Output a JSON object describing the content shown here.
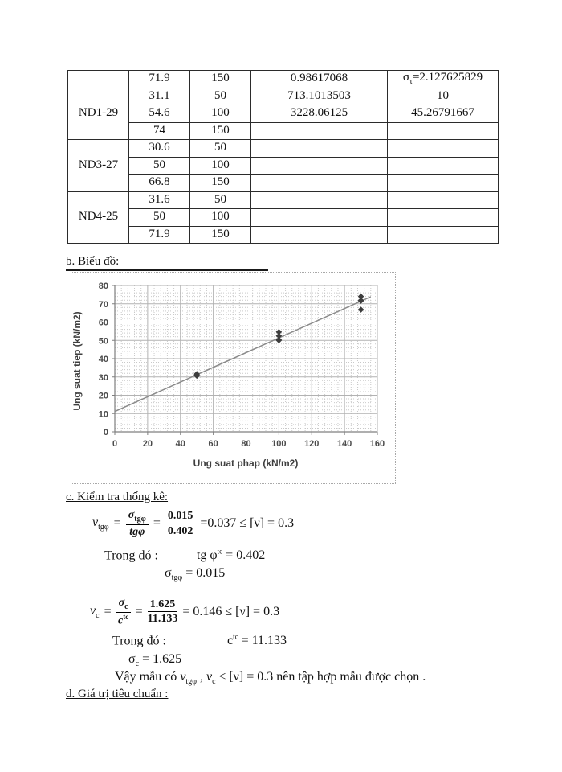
{
  "table": {
    "rows": [
      {
        "group": "",
        "shear": "71.9",
        "normal": "150",
        "col4": "0.98617068",
        "col5_sym": "σ",
        "col5_sub": "τ",
        "col5_val": "=2.127625829"
      },
      {
        "group": "ND1-29",
        "shear": "31.1",
        "normal": "50",
        "col4": "713.1013503",
        "col5": "10"
      },
      {
        "shear": "54.6",
        "normal": "100",
        "col4": "3228.06125",
        "col5": "45.26791667"
      },
      {
        "shear": "74",
        "normal": "150",
        "col4": "",
        "col5": ""
      },
      {
        "group": "ND3-27",
        "shear": "30.6",
        "normal": "50",
        "col4": "",
        "col5": ""
      },
      {
        "shear": "50",
        "normal": "100",
        "col4": "",
        "col5": ""
      },
      {
        "shear": "66.8",
        "normal": "150",
        "col4": "",
        "col5": ""
      },
      {
        "group": "ND4-25",
        "shear": "31.6",
        "normal": "50",
        "col4": "",
        "col5": ""
      },
      {
        "shear": "50",
        "normal": "100",
        "col4": "",
        "col5": ""
      },
      {
        "shear": "71.9",
        "normal": "150",
        "col4": "",
        "col5": ""
      }
    ]
  },
  "sections": {
    "b_heading": "b. Biểu đồ:",
    "c_heading": "c. Kiểm tra thống kê:",
    "d_heading": "d. Giá trị tiêu chuẩn :"
  },
  "chart_data": {
    "type": "scatter",
    "title": "",
    "xlabel": "Ung suat phap (kN/m2)",
    "ylabel": "Ung suat tiep (kN/m2)",
    "xlim": [
      0,
      160
    ],
    "ylim": [
      0,
      80
    ],
    "xticks": [
      0,
      20,
      40,
      60,
      80,
      100,
      120,
      140,
      160
    ],
    "yticks": [
      0,
      10,
      20,
      30,
      40,
      50,
      60,
      70,
      80
    ],
    "grid": {
      "x_major": 20,
      "x_minor": 4,
      "y_major": 10,
      "y_minor": 2
    },
    "marker": "diamond",
    "legend": "none",
    "points": [
      [
        50,
        30.6
      ],
      [
        50,
        31.1
      ],
      [
        50,
        31.6
      ],
      [
        100,
        50
      ],
      [
        100,
        50.3
      ],
      [
        100,
        52.5
      ],
      [
        100,
        54.6
      ],
      [
        150,
        66.8
      ],
      [
        150,
        71.6
      ],
      [
        150,
        71.9
      ],
      [
        150,
        74
      ]
    ],
    "trendline": {
      "slope": 0.402,
      "intercept": 11.133,
      "x_start": 0,
      "x_end": 156
    }
  },
  "check": {
    "f1": {
      "lhs": "ν",
      "lhs_sub": "tgφ",
      "eq1": "=",
      "num1": "σ",
      "num1_sub": "tgφ",
      "den1": "tgφ",
      "eq2": "=",
      "num2": "0.015",
      "den2": "0.402",
      "tail": "=0.037 ≤ [ν] = 0.3"
    },
    "w1_label": "Trong đó :",
    "w1_term": "tg φ",
    "w1_sup": "tc",
    "w1_value": " = 0.402",
    "w1b_sym": "σ",
    "w1b_sub": "tgφ",
    "w1b_value": " = 0.015",
    "f2": {
      "lhs": "ν",
      "lhs_sub": "c",
      "eq1": "=",
      "num1": "σ",
      "num1_sub": "c",
      "den1": "c",
      "den1_sup": "tc",
      "eq2": "=",
      "num2": "1.625",
      "den2": "11.133",
      "tail": "= 0.146 ≤ [ν] = 0.3"
    },
    "w2_label": "Trong đó :",
    "w2_term": "c",
    "w2_sup": "tc",
    "w2_value": " = 11.133",
    "w2b_sym": "σ",
    "w2b_sub": "c",
    "w2b_value": " = 1.625",
    "conclusion": {
      "p1": "Vậy mẫu có ",
      "s1": "ν",
      "s1_sub": "tgφ",
      "p2": " , ",
      "s2": "ν",
      "s2_sub": "c",
      "p3": " ≤ [ν] = 0.3 nên tập hợp mẫu được chọn ."
    }
  }
}
